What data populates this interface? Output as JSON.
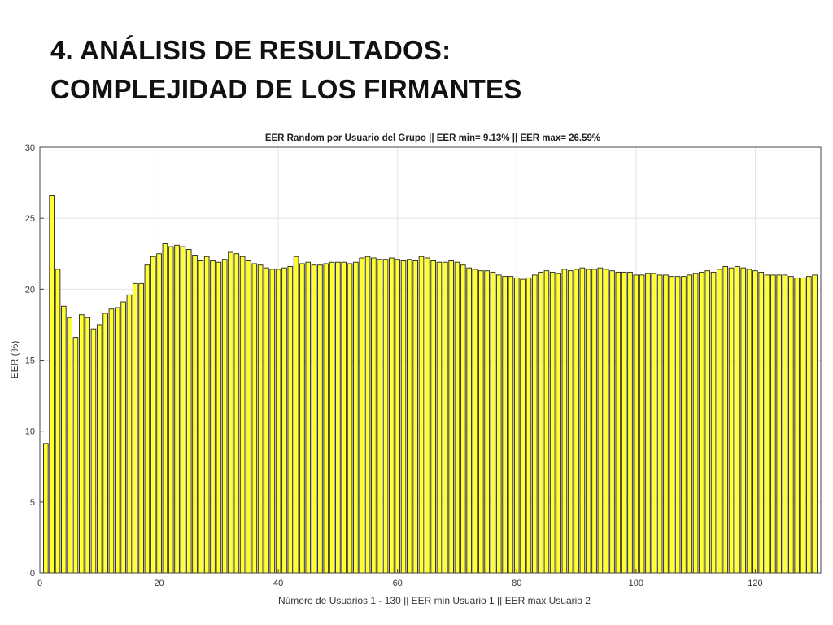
{
  "slide": {
    "title_line1": "4. ANÁLISIS DE RESULTADOS:",
    "title_line2": "COMPLEJIDAD DE LOS FIRMANTES"
  },
  "colors": {
    "bar_fill": "#ffff33",
    "bar_stroke": "#222222",
    "grid": "#e3e3e3",
    "axis": "#444444"
  },
  "chart_data": {
    "type": "bar",
    "title": "EER Random por Usuario del Grupo || EER min= 9.13% || EER max= 26.59%",
    "xlabel": "Número de Usuarios 1 - 130 || EER min Usuario 1 || EER max Usuario 2",
    "ylabel": "EER (%)",
    "xlim": [
      0,
      131
    ],
    "ylim": [
      0,
      30
    ],
    "xticks": [
      0,
      20,
      40,
      60,
      80,
      100,
      120
    ],
    "yticks": [
      0,
      5,
      10,
      15,
      20,
      25,
      30
    ],
    "grid": true,
    "x": [
      1,
      2,
      3,
      4,
      5,
      6,
      7,
      8,
      9,
      10,
      11,
      12,
      13,
      14,
      15,
      16,
      17,
      18,
      19,
      20,
      21,
      22,
      23,
      24,
      25,
      26,
      27,
      28,
      29,
      30,
      31,
      32,
      33,
      34,
      35,
      36,
      37,
      38,
      39,
      40,
      41,
      42,
      43,
      44,
      45,
      46,
      47,
      48,
      49,
      50,
      51,
      52,
      53,
      54,
      55,
      56,
      57,
      58,
      59,
      60,
      61,
      62,
      63,
      64,
      65,
      66,
      67,
      68,
      69,
      70,
      71,
      72,
      73,
      74,
      75,
      76,
      77,
      78,
      79,
      80,
      81,
      82,
      83,
      84,
      85,
      86,
      87,
      88,
      89,
      90,
      91,
      92,
      93,
      94,
      95,
      96,
      97,
      98,
      99,
      100,
      101,
      102,
      103,
      104,
      105,
      106,
      107,
      108,
      109,
      110,
      111,
      112,
      113,
      114,
      115,
      116,
      117,
      118,
      119,
      120,
      121,
      122,
      123,
      124,
      125,
      126,
      127,
      128,
      129,
      130
    ],
    "values": [
      9.13,
      26.59,
      21.4,
      18.8,
      18.0,
      16.6,
      18.2,
      18.0,
      17.2,
      17.5,
      18.3,
      18.6,
      18.7,
      19.1,
      19.6,
      20.4,
      20.4,
      21.7,
      22.3,
      22.5,
      23.2,
      23.0,
      23.1,
      23.0,
      22.8,
      22.4,
      22.0,
      22.3,
      22.0,
      21.9,
      22.1,
      22.6,
      22.5,
      22.3,
      22.0,
      21.8,
      21.7,
      21.5,
      21.4,
      21.4,
      21.5,
      21.6,
      22.3,
      21.8,
      21.9,
      21.7,
      21.7,
      21.8,
      21.9,
      21.9,
      21.9,
      21.8,
      21.9,
      22.2,
      22.3,
      22.2,
      22.1,
      22.1,
      22.2,
      22.1,
      22.0,
      22.1,
      22.0,
      22.3,
      22.2,
      22.0,
      21.9,
      21.9,
      22.0,
      21.9,
      21.7,
      21.5,
      21.4,
      21.3,
      21.3,
      21.2,
      21.0,
      20.9,
      20.9,
      20.8,
      20.7,
      20.8,
      21.0,
      21.2,
      21.3,
      21.2,
      21.1,
      21.4,
      21.3,
      21.4,
      21.5,
      21.4,
      21.4,
      21.5,
      21.4,
      21.3,
      21.2,
      21.2,
      21.2,
      21.0,
      21.0,
      21.1,
      21.1,
      21.0,
      21.0,
      20.9,
      20.9,
      20.9,
      21.0,
      21.1,
      21.2,
      21.3,
      21.2,
      21.4,
      21.6,
      21.5,
      21.6,
      21.5,
      21.4,
      21.3,
      21.2,
      21.0,
      21.0,
      21.0,
      21.0,
      20.9,
      20.8,
      20.8,
      20.9,
      21.0
    ]
  }
}
